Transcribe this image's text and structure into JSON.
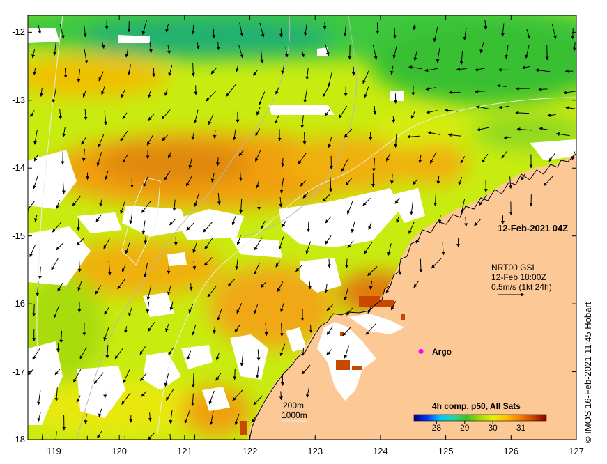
{
  "map": {
    "lon_range": [
      118.6,
      127
    ],
    "lat_range": [
      -18,
      -11.75
    ],
    "lon_ticks": [
      "119",
      "120",
      "121",
      "122",
      "123",
      "124",
      "125",
      "126",
      "127"
    ],
    "lat_ticks": [
      "-12",
      "-13",
      "-14",
      "-15",
      "-16",
      "-17",
      "-18"
    ],
    "land_color": "#fcc996",
    "no_data_color": "#ffffff"
  },
  "labels": {
    "date_stamp": "12-Feb-2021 04Z",
    "current_model": "NRT00 GSL",
    "current_time": "12-Feb 18:00Z",
    "current_scale": "0.5m/s (1kt 24h)",
    "argo_label": "Argo",
    "depth_200": "200m",
    "depth_1000": "1000m",
    "credit": "© IMOS 16-Feb-2021 11:45 Hobart"
  },
  "colorbar": {
    "title": "4h comp, p50, All Sats",
    "ticks": [
      "28",
      "29",
      "30",
      "31"
    ],
    "range": [
      27.2,
      31.9
    ],
    "stops": [
      "#000080",
      "#0038ff",
      "#00c8ff",
      "#20d8a0",
      "#40c020",
      "#a0e000",
      "#e8f000",
      "#ffc000",
      "#f08000",
      "#d04000",
      "#800000"
    ]
  },
  "argo": {
    "lon": 124.62,
    "lat": -16.7,
    "color": "#ff00ff"
  }
}
